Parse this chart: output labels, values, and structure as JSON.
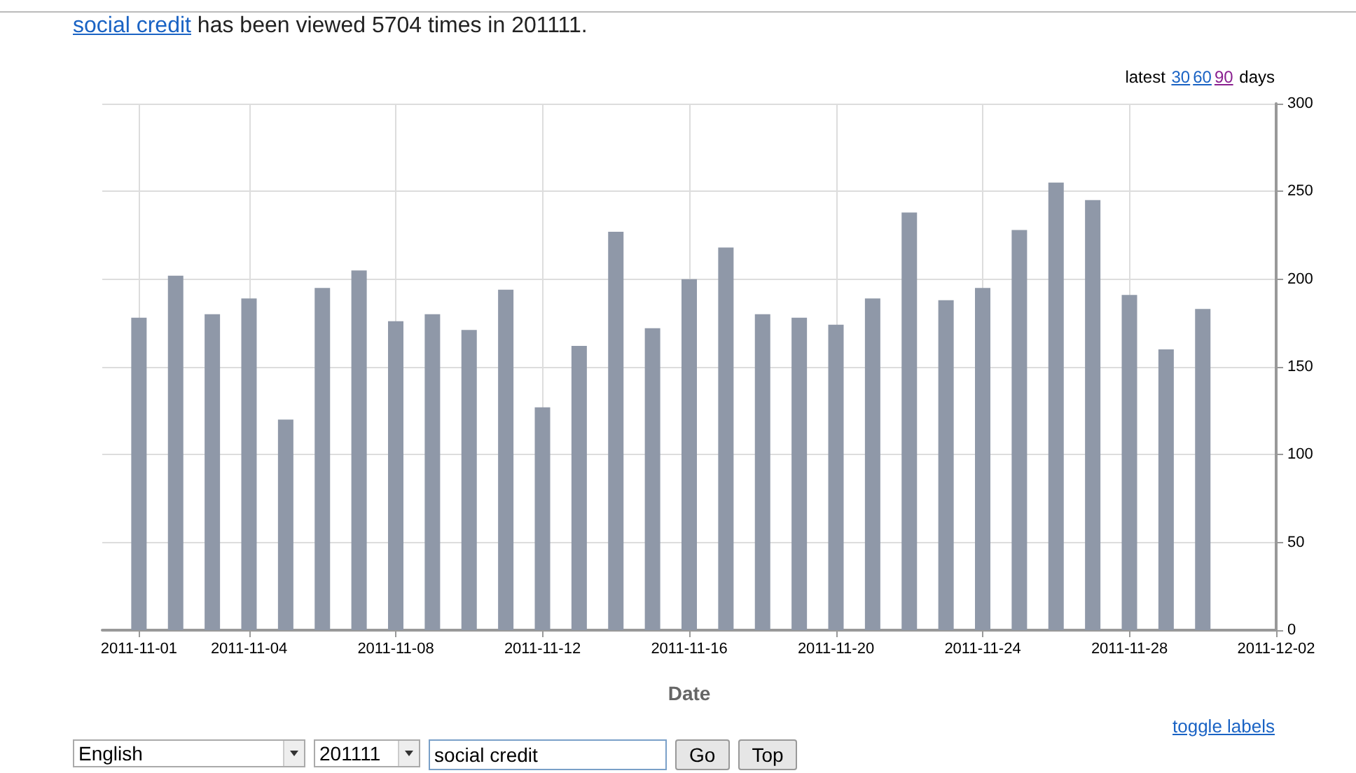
{
  "chart_data": {
    "type": "bar",
    "title": "social credit has been viewed 5704 times in 201111.",
    "xlabel": "Date",
    "x": [
      "2011-11-01",
      "2011-11-02",
      "2011-11-03",
      "2011-11-04",
      "2011-11-05",
      "2011-11-06",
      "2011-11-07",
      "2011-11-08",
      "2011-11-09",
      "2011-11-10",
      "2011-11-11",
      "2011-11-12",
      "2011-11-13",
      "2011-11-14",
      "2011-11-15",
      "2011-11-16",
      "2011-11-17",
      "2011-11-18",
      "2011-11-19",
      "2011-11-20",
      "2011-11-21",
      "2011-11-22",
      "2011-11-23",
      "2011-11-24",
      "2011-11-25",
      "2011-11-26",
      "2011-11-27",
      "2011-11-28",
      "2011-11-29",
      "2011-11-30"
    ],
    "values": [
      178,
      202,
      180,
      189,
      120,
      195,
      205,
      176,
      180,
      171,
      194,
      127,
      162,
      227,
      172,
      200,
      218,
      180,
      178,
      174,
      189,
      238,
      188,
      195,
      228,
      255,
      245,
      191,
      160,
      183
    ],
    "color": "#8f98a8",
    "xlim": [
      "2011-10-31",
      "2011-12-02"
    ],
    "xticks": [
      "2011-11-01",
      "2011-11-04",
      "2011-11-08",
      "2011-11-12",
      "2011-11-16",
      "2011-11-20",
      "2011-11-24",
      "2011-11-28",
      "2011-12-02"
    ],
    "ylim": [
      0,
      300
    ],
    "yticks": [
      0,
      50,
      100,
      150,
      200,
      250,
      300
    ],
    "grid": true,
    "annotations": [
      "latest",
      "30",
      "60",
      "90",
      "days",
      "toggle labels",
      "English",
      "201111",
      "social credit",
      "Go",
      "Top"
    ]
  }
}
